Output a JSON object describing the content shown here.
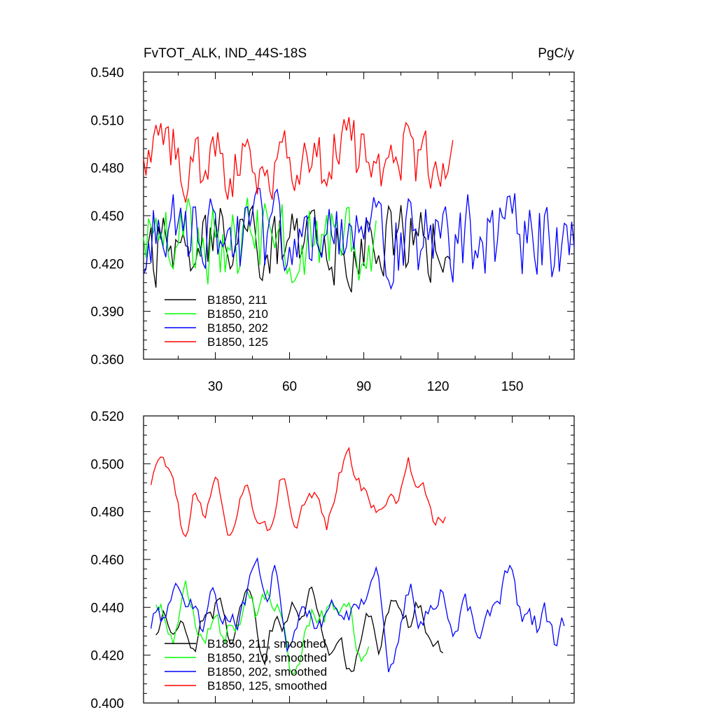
{
  "chart_data": [
    {
      "type": "line",
      "title": "FvTOT_ALK, IND_44S-18S",
      "units": "PgC/y",
      "xlim": [
        1,
        175
      ],
      "ylim": [
        0.36,
        0.54
      ],
      "yticks": [
        "0.360",
        "0.390",
        "0.420",
        "0.450",
        "0.480",
        "0.510",
        "0.540"
      ],
      "xticks": [
        "30",
        "60",
        "90",
        "120",
        "150"
      ],
      "grid": false,
      "legend_position": "bottom-left",
      "series": [
        {
          "name": "B1850, 211",
          "color": "#000000",
          "seed": 11,
          "start": 1,
          "end": 125,
          "mean": 0.432,
          "amp": 0.018,
          "window": 1
        },
        {
          "name": "B1850, 210",
          "color": "#00ff00",
          "seed": 22,
          "start": 1,
          "end": 95,
          "mean": 0.433,
          "amp": 0.019,
          "window": 1
        },
        {
          "name": "B1850, 202",
          "color": "#0000ff",
          "seed": 33,
          "start": 1,
          "end": 175,
          "mean": 0.436,
          "amp": 0.02,
          "window": 1
        },
        {
          "name": "B1850, 125",
          "color": "#ff0000",
          "seed": 44,
          "start": 1,
          "end": 126,
          "mean": 0.486,
          "amp": 0.017,
          "window": 1
        }
      ]
    },
    {
      "type": "line",
      "title": "",
      "units": "",
      "xlim": [
        1,
        175
      ],
      "ylim": [
        0.4,
        0.52
      ],
      "yticks": [
        "0.400",
        "0.420",
        "0.440",
        "0.460",
        "0.480",
        "0.500",
        "0.520"
      ],
      "xticks": [],
      "grid": false,
      "legend_position": "bottom-left",
      "series": [
        {
          "name": "B1850, 211, smoothed",
          "color": "#000000",
          "seed": 11,
          "start": 6,
          "end": 122,
          "mean": 0.432,
          "amp": 0.018,
          "window": 5
        },
        {
          "name": "B1850, 210, smoothed",
          "color": "#00ff00",
          "seed": 22,
          "start": 6,
          "end": 92,
          "mean": 0.433,
          "amp": 0.019,
          "window": 5
        },
        {
          "name": "B1850, 202, smoothed",
          "color": "#0000ff",
          "seed": 33,
          "start": 4,
          "end": 171,
          "mean": 0.436,
          "amp": 0.02,
          "window": 5
        },
        {
          "name": "B1850, 125, smoothed",
          "color": "#ff0000",
          "seed": 44,
          "start": 4,
          "end": 123,
          "mean": 0.486,
          "amp": 0.017,
          "window": 5
        }
      ]
    }
  ]
}
